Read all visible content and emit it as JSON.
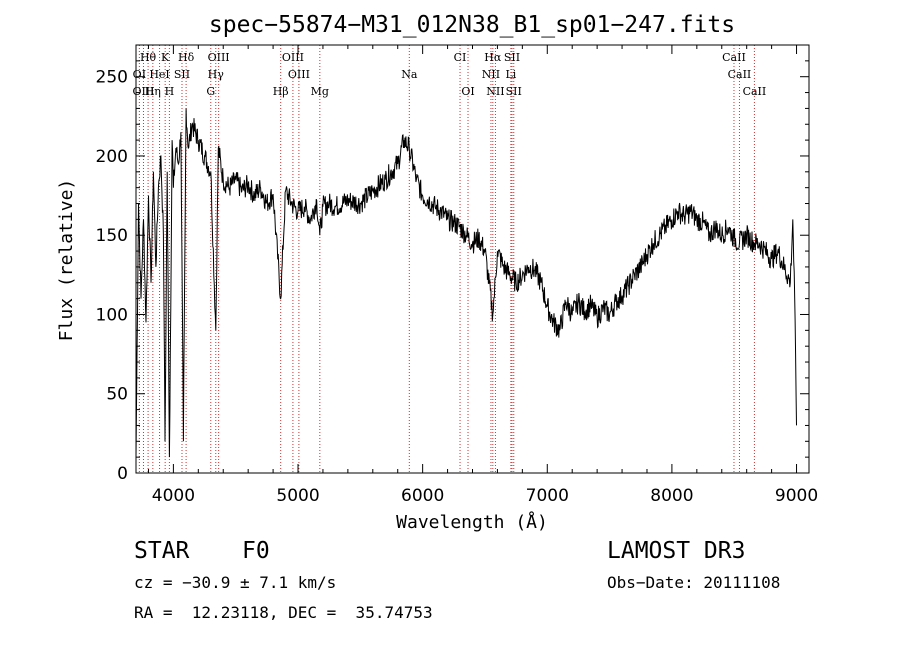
{
  "chart_data": {
    "type": "line",
    "title": "spec−55874−M31_012N38_B1_sp01−247.fits",
    "xlabel": "Wavelength (Å)",
    "ylabel": "Flux (relative)",
    "xlim": [
      3700,
      9100
    ],
    "ylim": [
      0,
      270
    ],
    "x_ticks": [
      4000,
      5000,
      6000,
      7000,
      8000,
      9000
    ],
    "y_ticks": [
      0,
      50,
      100,
      150,
      200,
      250
    ],
    "grid": false,
    "series": [
      {
        "name": "flux",
        "x": [
          3700,
          3720,
          3740,
          3760,
          3780,
          3800,
          3820,
          3840,
          3860,
          3880,
          3900,
          3920,
          3933,
          3950,
          3968,
          3990,
          4000,
          4020,
          4040,
          4060,
          4080,
          4102,
          4120,
          4150,
          4200,
          4250,
          4300,
          4340,
          4360,
          4400,
          4450,
          4500,
          4550,
          4600,
          4650,
          4700,
          4750,
          4800,
          4861,
          4900,
          4950,
          5000,
          5050,
          5100,
          5150,
          5175,
          5200,
          5250,
          5300,
          5400,
          5500,
          5600,
          5700,
          5800,
          5850,
          5893,
          5950,
          6000,
          6050,
          6100,
          6150,
          6200,
          6250,
          6300,
          6350,
          6400,
          6450,
          6500,
          6563,
          6600,
          6650,
          6700,
          6750,
          6800,
          6850,
          6900,
          6950,
          7000,
          7050,
          7100,
          7150,
          7200,
          7250,
          7300,
          7350,
          7400,
          7450,
          7500,
          7550,
          7600,
          7650,
          7700,
          7750,
          7800,
          7850,
          7900,
          7950,
          8000,
          8050,
          8100,
          8150,
          8200,
          8250,
          8300,
          8350,
          8400,
          8450,
          8498,
          8542,
          8600,
          8662,
          8700,
          8750,
          8800,
          8850,
          8900,
          8950,
          8970,
          8985,
          9000
        ],
        "y": [
          10,
          170,
          110,
          160,
          95,
          175,
          120,
          190,
          130,
          180,
          200,
          150,
          20,
          190,
          10,
          210,
          180,
          205,
          195,
          215,
          20,
          230,
          205,
          220,
          210,
          200,
          190,
          90,
          205,
          185,
          180,
          185,
          178,
          182,
          175,
          180,
          170,
          176,
          110,
          178,
          170,
          165,
          168,
          160,
          172,
          150,
          168,
          170,
          168,
          172,
          170,
          178,
          185,
          195,
          210,
          205,
          185,
          175,
          172,
          168,
          165,
          160,
          158,
          155,
          150,
          145,
          148,
          140,
          100,
          140,
          130,
          125,
          120,
          125,
          130,
          128,
          120,
          105,
          95,
          90,
          108,
          100,
          108,
          102,
          106,
          98,
          104,
          100,
          108,
          112,
          118,
          125,
          130,
          138,
          145,
          150,
          155,
          160,
          165,
          162,
          165,
          160,
          158,
          150,
          155,
          150,
          155,
          148,
          145,
          150,
          145,
          145,
          140,
          135,
          140,
          130,
          120,
          160,
          110,
          30
        ]
      }
    ],
    "line_markers": [
      {
        "label": "Hθ",
        "x": 3797,
        "row": 1
      },
      {
        "label": "K",
        "x": 3934,
        "row": 1
      },
      {
        "label": "Hδ",
        "x": 4102,
        "row": 1
      },
      {
        "label": "OIII",
        "x": 4363,
        "row": 1
      },
      {
        "label": "OIII",
        "x": 4959,
        "row": 1
      },
      {
        "label": "CI",
        "x": 6300,
        "row": 1
      },
      {
        "label": "Hα",
        "x": 6563,
        "row": 1
      },
      {
        "label": "SII",
        "x": 6717,
        "row": 1
      },
      {
        "label": "CaII",
        "x": 8498,
        "row": 1
      },
      {
        "label": "OI",
        "x": 3727,
        "row": 2
      },
      {
        "label": "HeI",
        "x": 3889,
        "row": 2
      },
      {
        "label": "SII",
        "x": 4069,
        "row": 2
      },
      {
        "label": "Hγ",
        "x": 4340,
        "row": 2
      },
      {
        "label": "OIII",
        "x": 5007,
        "row": 2
      },
      {
        "label": "Na",
        "x": 5893,
        "row": 2
      },
      {
        "label": "NII",
        "x": 6548,
        "row": 2
      },
      {
        "label": "Li",
        "x": 6708,
        "row": 2
      },
      {
        "label": "CaII",
        "x": 8542,
        "row": 2
      },
      {
        "label": "OIII",
        "x": 3760,
        "row": 3
      },
      {
        "label": "Hη",
        "x": 3835,
        "row": 3
      },
      {
        "label": "H",
        "x": 3968,
        "row": 3
      },
      {
        "label": "G",
        "x": 4300,
        "row": 3
      },
      {
        "label": "Hβ",
        "x": 4861,
        "row": 3
      },
      {
        "label": "Mg",
        "x": 5175,
        "row": 3
      },
      {
        "label": "OI",
        "x": 6364,
        "row": 3
      },
      {
        "label": "NII",
        "x": 6584,
        "row": 3
      },
      {
        "label": "SII",
        "x": 6731,
        "row": 3
      },
      {
        "label": "CaII",
        "x": 8662,
        "row": 3
      }
    ]
  },
  "info": {
    "object_class": "STAR",
    "subclass": "F0",
    "redshift": "cz = −30.9 ± 7.1 km/s",
    "coords": "RA =  12.23118, DEC =  35.74753",
    "survey": "LAMOST DR3",
    "obs_date": "Obs−Date: 20111108"
  }
}
